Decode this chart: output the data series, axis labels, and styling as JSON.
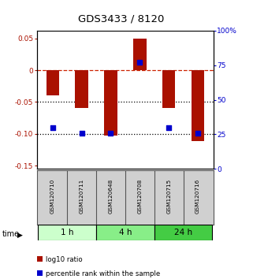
{
  "title": "GDS3433 / 8120",
  "samples": [
    "GSM120710",
    "GSM120711",
    "GSM120648",
    "GSM120708",
    "GSM120715",
    "GSM120716"
  ],
  "log10_ratio": [
    -0.04,
    -0.06,
    -0.103,
    0.05,
    -0.06,
    -0.112
  ],
  "percentile_rank": [
    30,
    26,
    26,
    77,
    30,
    26
  ],
  "bar_color": "#aa1100",
  "dot_color": "#0000cc",
  "ylim_left": [
    -0.155,
    0.062
  ],
  "ylim_right": [
    0,
    100
  ],
  "yticks_left": [
    0.05,
    0.0,
    -0.05,
    -0.1,
    -0.15
  ],
  "yticks_right": [
    100,
    75,
    50,
    25,
    0
  ],
  "ytick_labels_left": [
    "0.05",
    "0",
    "-0.05",
    "-0.10",
    "-0.15"
  ],
  "ytick_labels_right": [
    "100%",
    "75",
    "50",
    "25",
    "0"
  ],
  "hlines": [
    0.0,
    -0.05,
    -0.1
  ],
  "hline_styles": [
    "--",
    ":",
    ":"
  ],
  "hline_colors": [
    "#cc2200",
    "#000000",
    "#000000"
  ],
  "time_groups": [
    {
      "label": "1 h",
      "start": 0,
      "end": 2,
      "color": "#ccffcc"
    },
    {
      "label": "4 h",
      "start": 2,
      "end": 4,
      "color": "#88ee88"
    },
    {
      "label": "24 h",
      "start": 4,
      "end": 6,
      "color": "#44cc44"
    }
  ],
  "legend_red_label": "log10 ratio",
  "legend_blue_label": "percentile rank within the sample",
  "bar_width": 0.45,
  "xlabel_time": "time",
  "sample_box_color": "#d0d0d0",
  "sample_box_edge": "#555555"
}
